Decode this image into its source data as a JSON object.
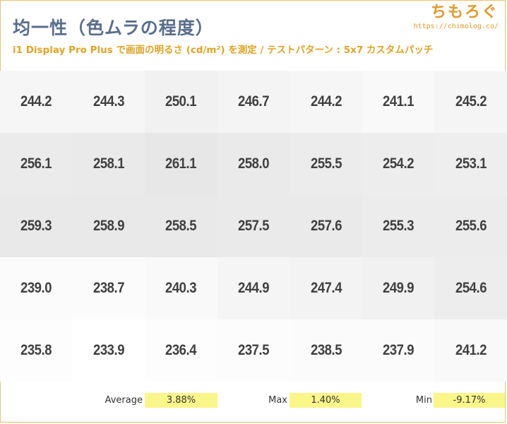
{
  "header": {
    "title": "均一性（色ムラの程度）",
    "subtitle": "i1 Display Pro Plus で画面の明るさ (cd/m²) を測定 / テストパターン : 5x7 カスタムパッチ",
    "brand_name": "ちもろぐ",
    "brand_url": "https://chimolog.co/"
  },
  "chart_data": {
    "type": "heatmap",
    "rows": 5,
    "cols": 7,
    "values": [
      [
        "244.2",
        "244.3",
        "250.1",
        "246.7",
        "244.2",
        "241.1",
        "245.2"
      ],
      [
        "256.1",
        "258.1",
        "261.1",
        "258.0",
        "255.5",
        "254.2",
        "253.1"
      ],
      [
        "259.3",
        "258.9",
        "258.5",
        "257.5",
        "257.6",
        "255.3",
        "255.6"
      ],
      [
        "239.0",
        "238.7",
        "240.3",
        "244.9",
        "247.4",
        "249.9",
        "254.6"
      ],
      [
        "235.8",
        "233.9",
        "236.4",
        "237.5",
        "238.5",
        "237.9",
        "241.2"
      ]
    ],
    "color_scale": {
      "low": "#ffffff",
      "high": "#e7e7e7",
      "min": 233.9,
      "max": 261.1
    }
  },
  "stats": {
    "average_label": "Average",
    "average_value": "3.88%",
    "max_label": "Max",
    "max_value": "1.40%",
    "min_label": "Min",
    "min_value": "-9.17%",
    "highlight_color": "#fbf68a"
  }
}
